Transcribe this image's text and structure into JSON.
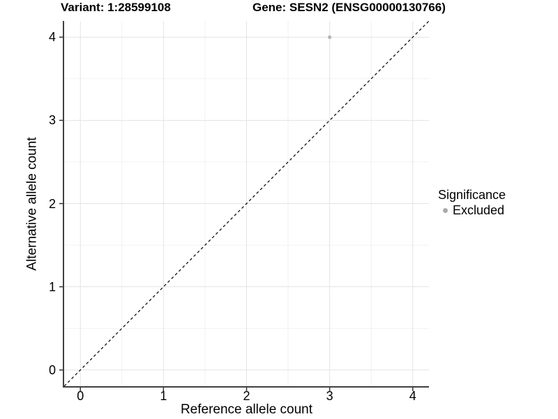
{
  "header": {
    "variant_title": "Variant: 1:28599108",
    "gene_title": "Gene: SESN2 (ENSG00000130766)"
  },
  "axes": {
    "x": {
      "label": "Reference allele count",
      "tick_labels": [
        "0",
        "1",
        "2",
        "3",
        "4"
      ]
    },
    "y": {
      "label": "Alternative allele count",
      "tick_labels": [
        "0",
        "1",
        "2",
        "3",
        "4"
      ]
    }
  },
  "legend": {
    "title": "Significance",
    "items": [
      {
        "label": "Excluded",
        "color": "#aaaaaa"
      }
    ]
  },
  "colors": {
    "background": "#ffffff",
    "text": "#000000",
    "axis_line": "#404040",
    "tick_mark": "#333333",
    "grid_major": "#e3e3e3",
    "grid_minor": "#f1f1f1",
    "point": "#b5b5b5",
    "identity_line": "#000000"
  },
  "chart_data": {
    "type": "scatter",
    "title": "Variant: 1:28599108    Gene: SESN2 (ENSG00000130766)",
    "xlabel": "Reference allele count",
    "ylabel": "Alternative allele count",
    "xlim": [
      -0.195,
      4.195
    ],
    "ylim": [
      -0.195,
      4.195
    ],
    "x_ticks": [
      0,
      1,
      2,
      3,
      4
    ],
    "y_ticks": [
      0,
      1,
      2,
      3,
      4
    ],
    "grid": "major gridlines at integers, minor gridlines at 0.5 steps",
    "legend_position": "right",
    "legend_title": "Significance",
    "series": [
      {
        "name": "Excluded",
        "color": "#b5b5b5",
        "point_radius": 2.6,
        "points": [
          [
            3,
            4
          ]
        ]
      }
    ],
    "reference_line": {
      "kind": "identity y=x",
      "style": "dashed",
      "color": "#000000",
      "width": 1.2
    }
  }
}
